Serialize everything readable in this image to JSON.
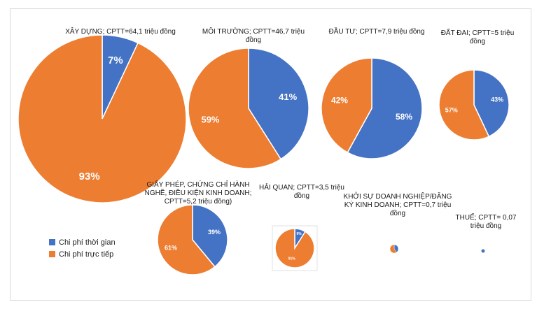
{
  "chart_data": {
    "type": "pie",
    "series_names": [
      "Chi phí thời gian",
      "Chi phí trực tiếp"
    ],
    "colors": {
      "time": "#4472c4",
      "direct": "#ed7d31"
    },
    "charts": [
      {
        "id": "xay-dung",
        "title": "XÂY DỰNG; CPTT=64,1 triệu đồng",
        "values": [
          7,
          93
        ],
        "labels": [
          "7%",
          "93%"
        ]
      },
      {
        "id": "moi-truong",
        "title": "MÔI TRƯỜNG; CPTT=46,7 triệu đồng",
        "values": [
          41,
          59
        ],
        "labels": [
          "41%",
          "59%"
        ]
      },
      {
        "id": "dau-tu",
        "title": "ĐẦU TƯ; CPTT=7,9 triệu đồng",
        "values": [
          58,
          42
        ],
        "labels": [
          "58%",
          "42%"
        ]
      },
      {
        "id": "dat-dai",
        "title": "ĐẤT ĐAI; CPTT=5 triệu đồng",
        "values": [
          43,
          57
        ],
        "labels": [
          "43%",
          "57%"
        ]
      },
      {
        "id": "giay-phep",
        "title": "GIẤY PHÉP, CHỨNG CHỈ HÀNH NGHỀ, ĐIỀU KIỆN KINH DOANH; CPTT=5,2 triệu đồng)",
        "values": [
          39,
          61
        ],
        "labels": [
          "39%",
          "61%"
        ]
      },
      {
        "id": "hai-quan",
        "title": "HẢI QUAN; CPTT=3,5 triệu đồng",
        "values": [
          9,
          91
        ],
        "labels": [
          "9%",
          "91%"
        ]
      },
      {
        "id": "khoi-su",
        "title": "KHỞI SỰ DOANH NGHIỆP/ĐĂNG KÝ KINH DOANH; CPTT=0,7 triệu đồng",
        "values": [
          40,
          60
        ],
        "labels": [
          "",
          ""
        ]
      },
      {
        "id": "thue",
        "title": "THUẾ; CPTT= 0,07 triệu đồng",
        "values": [
          100,
          0
        ],
        "labels": [
          "",
          ""
        ]
      }
    ]
  },
  "legend": {
    "time_label": "Chi phí thời gian",
    "direct_label": "Chi phí trực tiếp"
  }
}
